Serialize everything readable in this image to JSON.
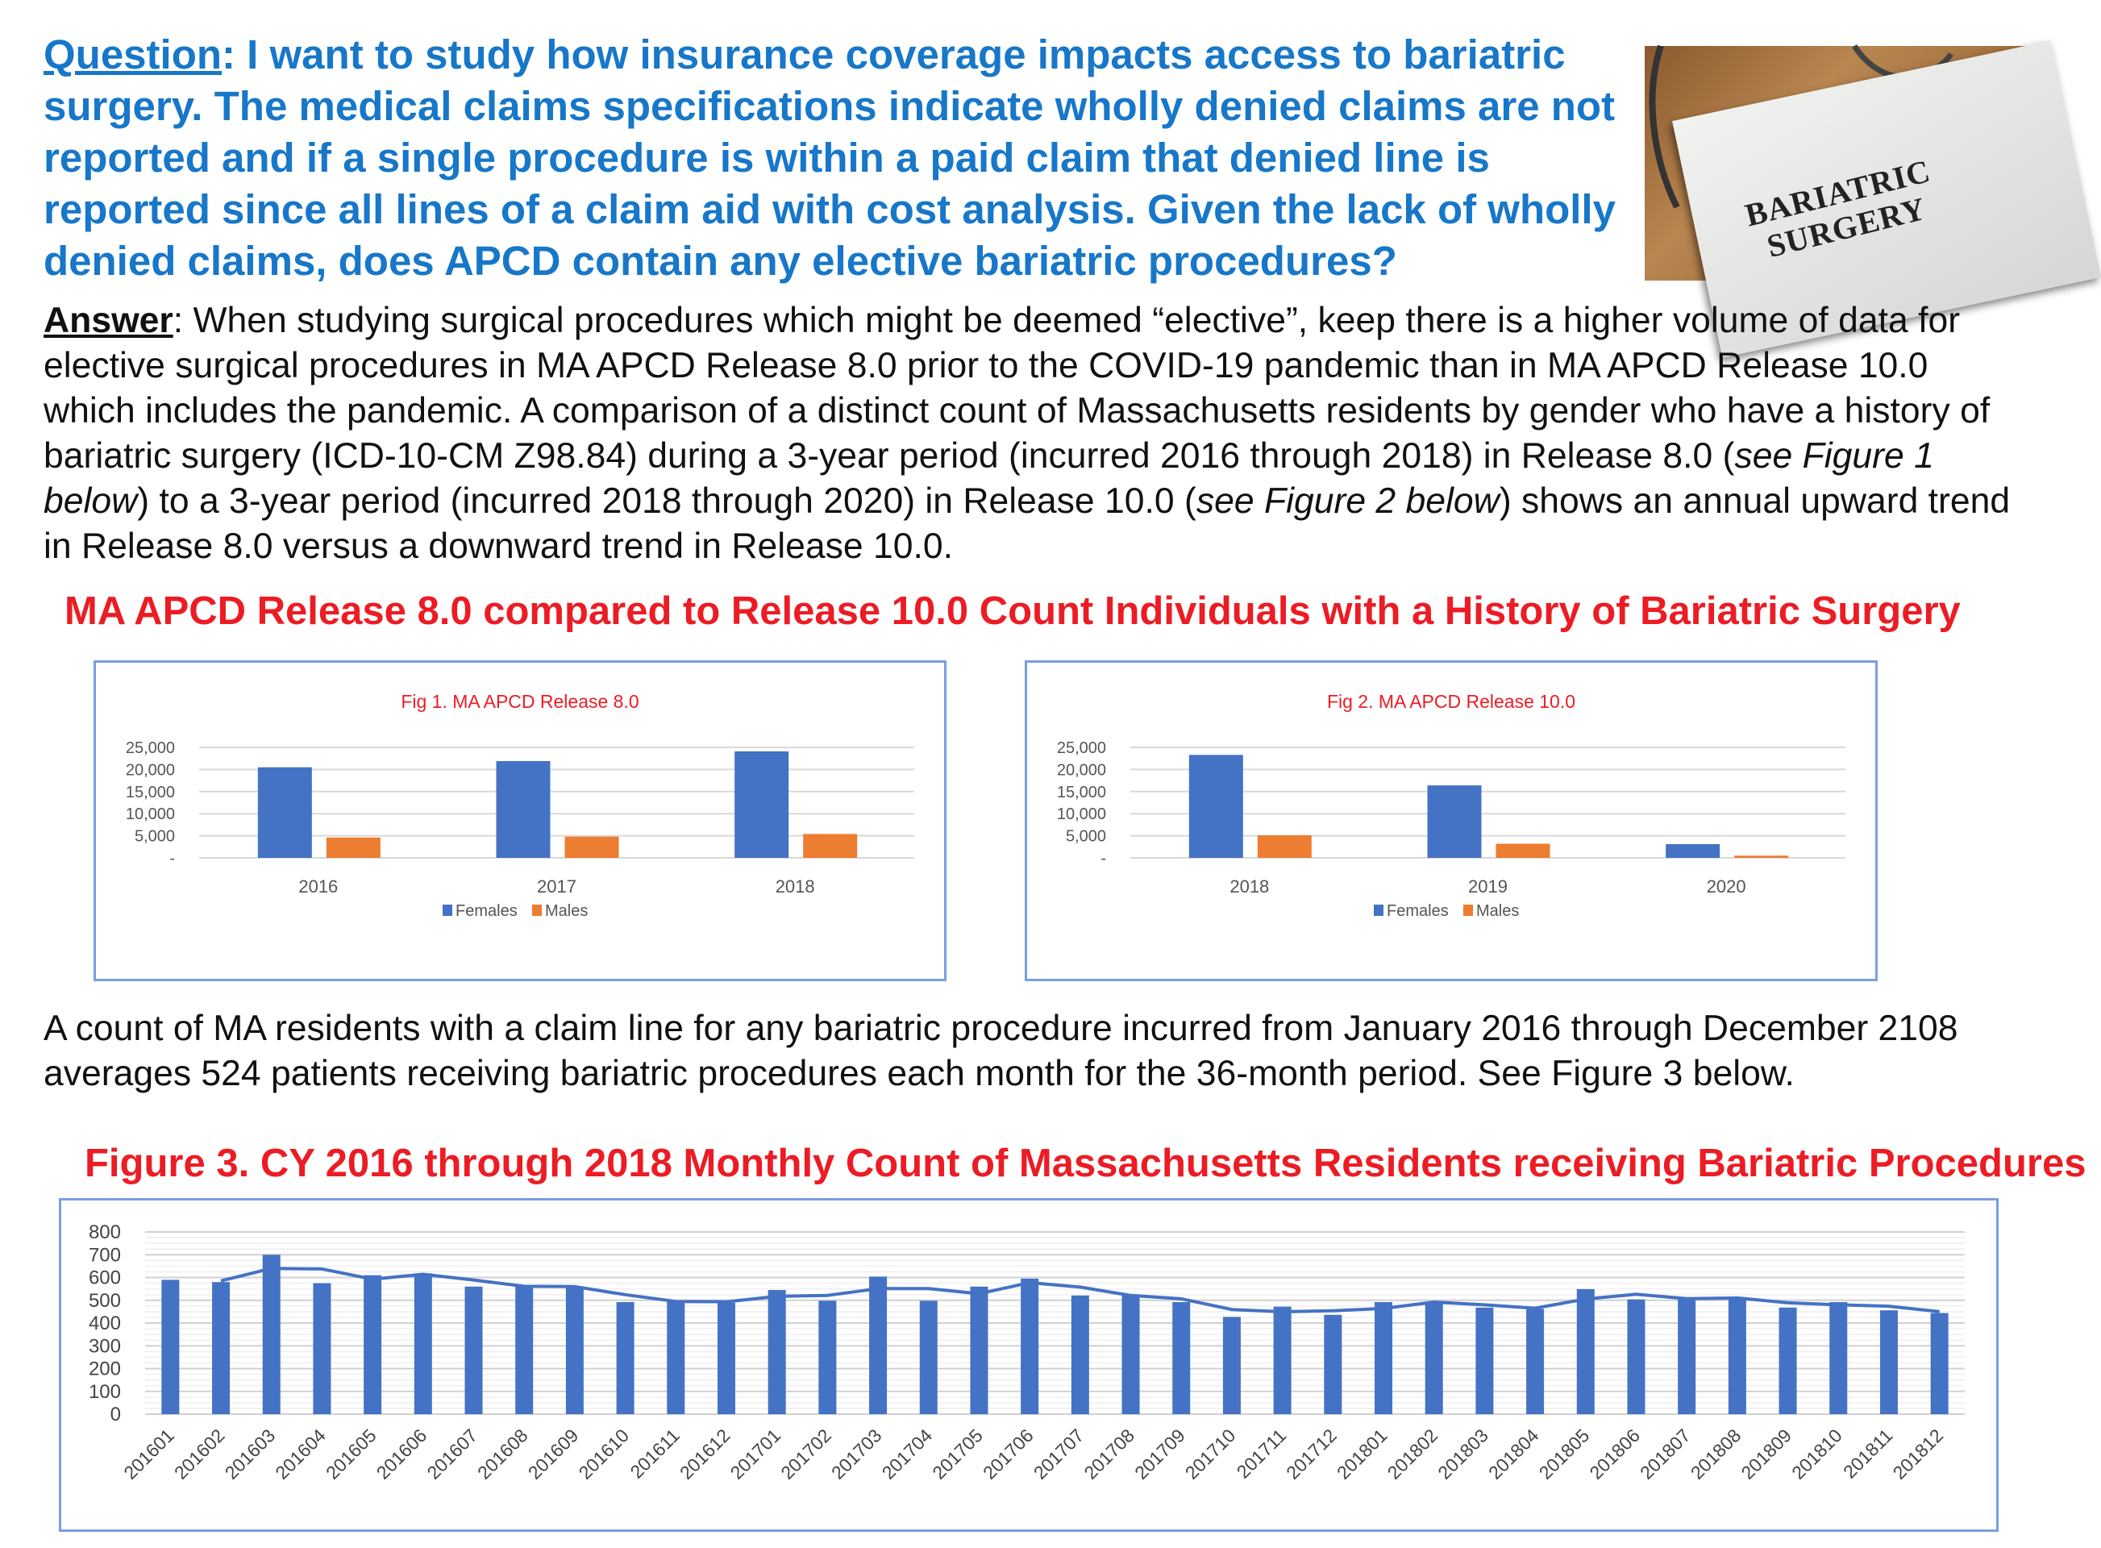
{
  "question": {
    "label": "Question",
    "text": ": I want to study how insurance coverage impacts access to bariatric surgery.  The medical claims specifications indicate wholly denied claims are not reported and if a single procedure is within a paid claim that denied line is reported since all lines of a claim aid with cost analysis. Given the lack of wholly denied claims, does APCD contain any elective bariatric procedures?"
  },
  "photo": {
    "text_line1": "BARIATRIC",
    "text_line2": "SURGERY"
  },
  "answer": {
    "label": "Answer",
    "text_1": ": When studying surgical procedures which might be deemed “elective”, keep there is a higher volume of data for elective surgical procedures in MA APCD Release 8.0 prior to the COVID-19 pandemic than in MA APCD Release 10.0 which includes the pandemic. A comparison of a distinct count of Massachusetts residents by gender who have a history of bariatric surgery (ICD-10-CM Z98.84) during a 3-year period (incurred 2016 through 2018) in Release 8.0 (",
    "italic_1": "see Figure 1 below",
    "text_2": ") to a 3-year period (incurred 2018 through 2020) in Release 10.0 (",
    "italic_2": "see Figure 2 below",
    "text_3": ") shows an annual upward trend in Release 8.0 versus a downward trend in Release 10.0."
  },
  "heading1": "MA APCD Release 8.0 compared to Release 10.0  Count Individuals with a History of Bariatric Surgery",
  "paragraph2": "A count of MA residents with a claim line for any bariatric procedure incurred from January 2016 through December 2108 averages 524 patients receiving bariatric procedures each month for the 36-month period. See Figure 3 below.",
  "heading3": "Figure 3. CY 2016 through 2018 Monthly Count of Massachusetts Residents receiving Bariatric Procedures",
  "colors": {
    "question": "#1777c9",
    "heading": "#ec1c24",
    "females": "#4472c4",
    "males": "#ed7d31",
    "fig3_bars": "#4472c4"
  },
  "chart_data": [
    {
      "type": "bar",
      "title": "Fig 1. MA APCD Release 8.0",
      "categories": [
        "2016",
        "2017",
        "2018"
      ],
      "series": [
        {
          "name": "Females",
          "values": [
            20500,
            21900,
            24100
          ]
        },
        {
          "name": "Males",
          "values": [
            4600,
            4800,
            5400
          ]
        }
      ],
      "yticks": [
        "-",
        "5,000",
        "10,000",
        "15,000",
        "20,000",
        "25,000"
      ],
      "ylim": [
        0,
        25000
      ],
      "grid": true,
      "legend": "bottom"
    },
    {
      "type": "bar",
      "title": "Fig 2. MA APCD Release 10.0",
      "categories": [
        "2018",
        "2019",
        "2020"
      ],
      "series": [
        {
          "name": "Females",
          "values": [
            23300,
            16400,
            3100
          ]
        },
        {
          "name": "Males",
          "values": [
            5100,
            3200,
            500
          ]
        }
      ],
      "yticks": [
        "-",
        "5,000",
        "10,000",
        "15,000",
        "20,000",
        "25,000"
      ],
      "ylim": [
        0,
        25000
      ],
      "grid": true,
      "legend": "bottom"
    },
    {
      "type": "bar",
      "title": "",
      "categories": [
        "201601",
        "201602",
        "201603",
        "201604",
        "201605",
        "201606",
        "201607",
        "201608",
        "201609",
        "201610",
        "201611",
        "201612",
        "201701",
        "201702",
        "201703",
        "201704",
        "201705",
        "201706",
        "201707",
        "201708",
        "201709",
        "201710",
        "201711",
        "201712",
        "201801",
        "201802",
        "201803",
        "201804",
        "201805",
        "201806",
        "201807",
        "201808",
        "201809",
        "201810",
        "201811",
        "201812"
      ],
      "values": [
        590,
        580,
        700,
        575,
        610,
        618,
        560,
        563,
        557,
        492,
        498,
        489,
        545,
        498,
        604,
        498,
        560,
        595,
        521,
        521,
        492,
        427,
        472,
        436,
        492,
        492,
        468,
        462,
        549,
        504,
        510,
        510,
        468,
        492,
        456,
        444
      ],
      "trendline": "2-period moving average",
      "yticks": [
        "0",
        "100",
        "200",
        "300",
        "400",
        "500",
        "600",
        "700",
        "800"
      ],
      "ylim": [
        0,
        800
      ],
      "grid": true,
      "legend": "none"
    }
  ]
}
